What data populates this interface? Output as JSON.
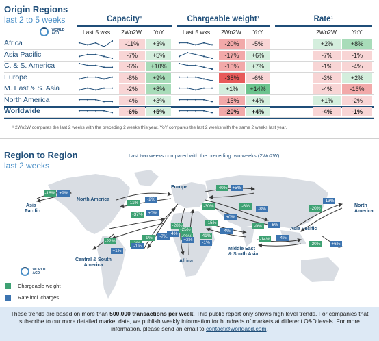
{
  "origin": {
    "title": "Origin Regions",
    "subtitle": "last 2 to 5 weeks",
    "logo_text": [
      "WORLD",
      "ACD"
    ],
    "groups": [
      {
        "title": "Capacity¹",
        "cols": [
          "Last 5 wks",
          "2Wo2W",
          "YoY"
        ]
      },
      {
        "title": "Chargeable weight¹",
        "cols": [
          "Last 5 wks",
          "2Wo2W",
          "YoY"
        ]
      },
      {
        "title": "Rate¹",
        "cols": [
          "2Wo2W",
          "YoY"
        ]
      }
    ],
    "rows": [
      {
        "label": "Africa",
        "bold": false,
        "cap": [
          "-11%",
          "+3%"
        ],
        "cap_spark": [
          3,
          2,
          3,
          1,
          4
        ],
        "cw": [
          "-20%",
          "-5%"
        ],
        "cw_spark": [
          3,
          3,
          2,
          3,
          2
        ],
        "rate": [
          "+2%",
          "+8%"
        ]
      },
      {
        "label": "Asia Pacific",
        "bold": false,
        "cap": [
          "-7%",
          "+5%"
        ],
        "cap_spark": [
          2,
          3,
          3,
          2,
          1
        ],
        "cw": [
          "-17%",
          "+6%"
        ],
        "cw_spark": [
          2,
          4,
          3,
          2,
          1
        ],
        "rate": [
          "-7%",
          "-1%"
        ]
      },
      {
        "label": "C. & S. America",
        "bold": false,
        "cap": [
          "-6%",
          "+10%"
        ],
        "cap_spark": [
          4,
          3,
          3,
          2,
          2
        ],
        "cw": [
          "-15%",
          "+7%"
        ],
        "cw_spark": [
          4,
          3,
          3,
          2,
          1
        ],
        "rate": [
          "-1%",
          "-4%"
        ]
      },
      {
        "label": "Europe",
        "bold": false,
        "cap": [
          "-8%",
          "+9%"
        ],
        "cap_spark": [
          2,
          3,
          3,
          2,
          3
        ],
        "cw": [
          "-38%",
          "-6%"
        ],
        "cw_spark": [
          3,
          3,
          3,
          2,
          1
        ],
        "rate": [
          "-3%",
          "+2%"
        ]
      },
      {
        "label": "M. East & S. Asia",
        "bold": false,
        "cap": [
          "-2%",
          "+8%"
        ],
        "cap_spark": [
          2,
          3,
          2,
          3,
          3
        ],
        "cw": [
          "+1%",
          "+14%"
        ],
        "cw_spark": [
          3,
          3,
          2,
          3,
          3
        ],
        "rate": [
          "-4%",
          "-16%"
        ]
      },
      {
        "label": "North America",
        "bold": false,
        "cap": [
          "-4%",
          "+3%"
        ],
        "cap_spark": [
          3,
          3,
          3,
          2,
          2
        ],
        "cw": [
          "-15%",
          "+4%"
        ],
        "cw_spark": [
          3,
          3,
          3,
          3,
          2
        ],
        "rate": [
          "+1%",
          "-2%"
        ]
      },
      {
        "label": "Worldwide",
        "bold": true,
        "cap": [
          "-6%",
          "+5%"
        ],
        "cap_spark": [
          3,
          3,
          3,
          3,
          2
        ],
        "cw": [
          "-20%",
          "+4%"
        ],
        "cw_spark": [
          3,
          3,
          3,
          3,
          2
        ],
        "rate": [
          "-4%",
          "-1%"
        ]
      }
    ],
    "footnote": "¹ 2Wo2W compares the last 2 weeks with the preceding 2 weeks this year. YoY compares the last 2 weeks with the same 2 weeks last year."
  },
  "r2r": {
    "title": "Region to Region",
    "subtitle": "last 2 weeks",
    "map_title": "Last two weeks compared with the preceding two weeks (2Wo2W)",
    "regions": {
      "asia_pacific_left": [
        "Asia",
        "Pacific"
      ],
      "north_america": [
        "North America"
      ],
      "europe": [
        "Europe"
      ],
      "asia_pacific_right": [
        "Asia Pacific"
      ],
      "north_america_right": [
        "North",
        "America"
      ],
      "central_south": [
        "Central & South",
        "America"
      ],
      "africa": [
        "Africa"
      ],
      "middle_east": [
        "Middle East",
        "& South Asia"
      ]
    },
    "badges": [
      {
        "id": "apna-g",
        "kind": "green",
        "text": "-16%"
      },
      {
        "id": "apna-b",
        "kind": "blue",
        "text": "+9%"
      },
      {
        "id": "naeu-g1",
        "kind": "green",
        "text": "-11%"
      },
      {
        "id": "naeu-b1",
        "kind": "blue",
        "text": "-2%"
      },
      {
        "id": "naeu-g2",
        "kind": "green",
        "text": "-37%"
      },
      {
        "id": "naeu-b2",
        "kind": "blue",
        "text": "+0%"
      },
      {
        "id": "eur-g1",
        "kind": "green",
        "text": "-40%"
      },
      {
        "id": "eur-b1",
        "kind": "blue",
        "text": "+5%"
      },
      {
        "id": "eur-g2",
        "kind": "green",
        "text": "-30%"
      },
      {
        "id": "eur-g3",
        "kind": "green",
        "text": "-6%"
      },
      {
        "id": "eur-b3",
        "kind": "blue",
        "text": "-8%"
      },
      {
        "id": "eur-b4",
        "kind": "blue",
        "text": "+0%"
      },
      {
        "id": "eur-g4",
        "kind": "green",
        "text": "-15%"
      },
      {
        "id": "eur-b5",
        "kind": "blue",
        "text": "-4%"
      },
      {
        "id": "apr-g",
        "kind": "green",
        "text": "-20%"
      },
      {
        "id": "apr-b",
        "kind": "blue",
        "text": "-13%"
      },
      {
        "id": "me-g1",
        "kind": "green",
        "text": "-0%"
      },
      {
        "id": "me-b1",
        "kind": "blue",
        "text": "-6%"
      },
      {
        "id": "me-g2",
        "kind": "green",
        "text": "-14%"
      },
      {
        "id": "me-b2",
        "kind": "blue",
        "text": "-4%"
      },
      {
        "id": "ap-g2",
        "kind": "green",
        "text": "-20%"
      },
      {
        "id": "ap-b2",
        "kind": "blue",
        "text": "+6%"
      },
      {
        "id": "cs-g1",
        "kind": "green",
        "text": "-9%"
      },
      {
        "id": "cs-b1",
        "kind": "blue",
        "text": "-7%"
      },
      {
        "id": "cs-g2",
        "kind": "green",
        "text": "-22%"
      },
      {
        "id": "cs-b2",
        "kind": "blue",
        "text": "+1%"
      },
      {
        "id": "cs-g3",
        "kind": "green",
        "text": "-2%"
      },
      {
        "id": "cs-b3",
        "kind": "blue",
        "text": "-1%"
      },
      {
        "id": "af-g1",
        "kind": "green",
        "text": "-28%"
      },
      {
        "id": "af-b1",
        "kind": "blue",
        "text": "+4%"
      },
      {
        "id": "af-g2",
        "kind": "green",
        "text": "-25%"
      },
      {
        "id": "af-g3",
        "kind": "green",
        "text": "-39%"
      },
      {
        "id": "af-b2",
        "kind": "blue",
        "text": "+2%"
      },
      {
        "id": "af-g4",
        "kind": "green",
        "text": "-41%"
      },
      {
        "id": "af-b3",
        "kind": "blue",
        "text": "-1%"
      }
    ],
    "legend": [
      {
        "kind": "green",
        "label": "Chargeable weight",
        "color": "#3ea173"
      },
      {
        "kind": "blue",
        "label": "Rate incl. charges",
        "color": "#3c74b0"
      }
    ]
  },
  "bottom": {
    "text_a": "These trends are based on more than ",
    "text_b": "500,000 transactions per week",
    "text_c": ". This public report only shows high level trends. For companies that subscribe to our more detailed market data, we publish weekly information for hundreds of markets at different O&D levels. For more information, please send an email to ",
    "email": "contact@worldacd.com",
    "text_d": "."
  },
  "colors": {
    "accent_navy": "#1f4e79",
    "accent_blue": "#4a8fc7",
    "neg_light": "#f8d5d5",
    "neg_mid": "#f2a9a9",
    "neg_strong": "#e85a5a",
    "pos_light": "#d4eedd",
    "pos_mid": "#a8dcb9",
    "pos_strong": "#6cc48e"
  }
}
